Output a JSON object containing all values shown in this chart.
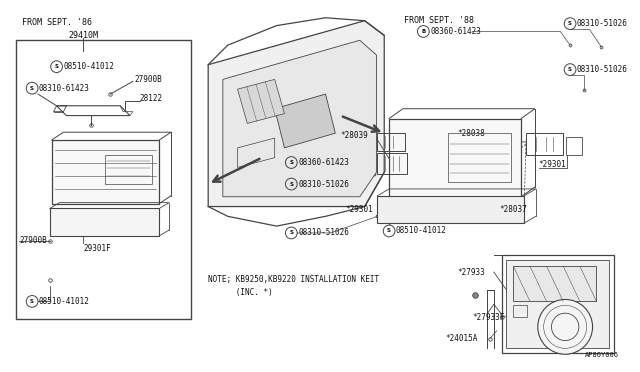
{
  "bg_color": "#ffffff",
  "line_color": "#444444",
  "text_color": "#111111",
  "left_header": "FROM SEPT. '86",
  "left_label_top": "29410M",
  "right_header": "FROM SEPT. '88",
  "note_text": "NOTE; KB9250,KB9220 INSTALLATION KEIT\n      (INC. *)",
  "diagram_label": "AP80Y006"
}
